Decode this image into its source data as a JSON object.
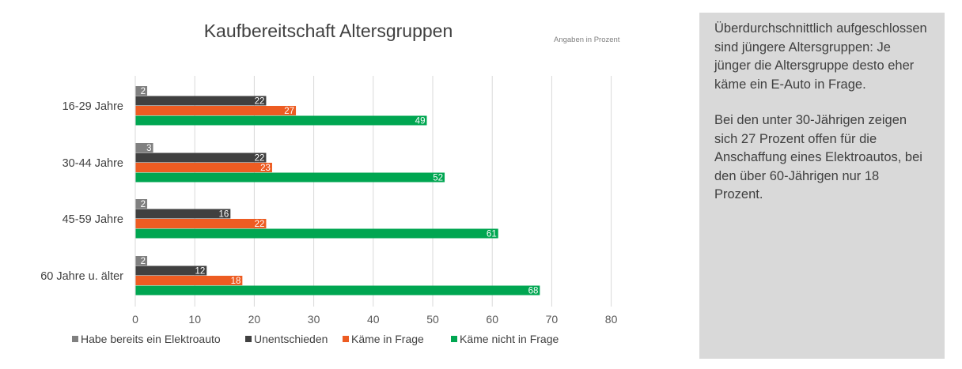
{
  "chart_data": {
    "type": "bar",
    "orientation": "horizontal",
    "title": "Kaufbereitschaft Altersgruppen",
    "note": "Angaben in Prozent",
    "categories": [
      "16-29 Jahre",
      "30-44 Jahre",
      "45-59 Jahre",
      "60 Jahre u. älter"
    ],
    "series": [
      {
        "name": "Habe bereits ein Elektroauto",
        "color": "#808080",
        "values": [
          2,
          3,
          2,
          2
        ]
      },
      {
        "name": "Unentschieden",
        "color": "#404040",
        "values": [
          22,
          22,
          16,
          12
        ]
      },
      {
        "name": "Käme in Frage",
        "color": "#ed5c22",
        "values": [
          27,
          23,
          22,
          18
        ]
      },
      {
        "name": "Käme nicht in Frage",
        "color": "#00a651",
        "values": [
          49,
          52,
          61,
          68
        ]
      }
    ],
    "xlim": [
      0,
      80
    ],
    "xticks": [
      0,
      10,
      20,
      30,
      40,
      50,
      60,
      70,
      80
    ],
    "grid": true,
    "legend": "bottom",
    "data_labels": true
  },
  "side_panel": {
    "paragraphs": [
      "Überdurchschnittlich aufgeschlossen sind jüngere Altersgruppen: Je jünger die Altersgruppe desto eher käme ein E-Auto in Frage.",
      "Bei den unter 30-Jährigen zeigen sich 27 Prozent offen für die Anschaffung eines Elektroautos, bei den über 60-Jährigen nur 18 Prozent."
    ]
  }
}
